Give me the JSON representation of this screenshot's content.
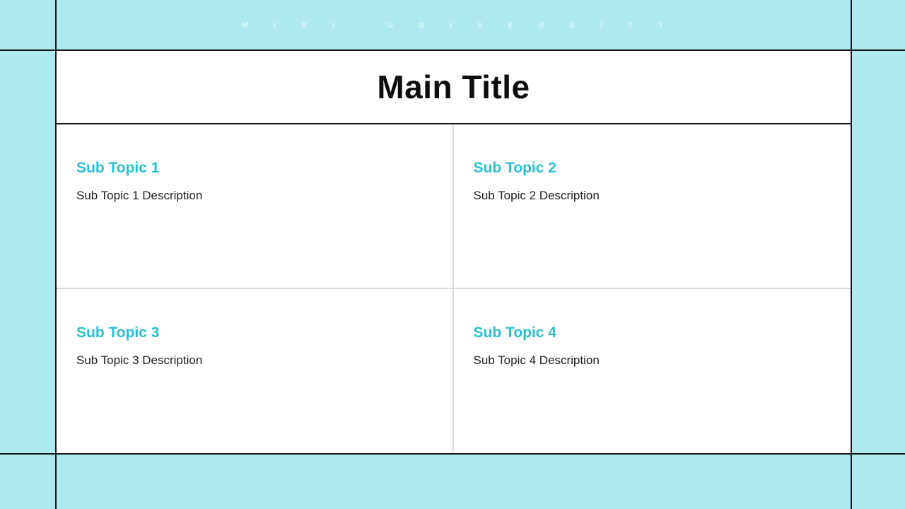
{
  "colors": {
    "background": "#ADE9EF",
    "frame_line": "#141414",
    "accent": "#2BBFCE",
    "quadrant_divider": "#D9D9DE",
    "title_text": "#0D0D0D",
    "body_text": "#212121",
    "watermark_text": "#FFFFFF"
  },
  "watermark": {
    "text": "MIRI UNIVERSITY"
  },
  "title": {
    "text": "Main Title"
  },
  "topics": [
    {
      "heading": "Sub Topic 1",
      "description": "Sub Topic 1 Description"
    },
    {
      "heading": "Sub Topic 2",
      "description": "Sub Topic 2 Description"
    },
    {
      "heading": "Sub Topic 3",
      "description": "Sub Topic 3 Description"
    },
    {
      "heading": "Sub Topic 4",
      "description": "Sub Topic 4 Description"
    }
  ]
}
